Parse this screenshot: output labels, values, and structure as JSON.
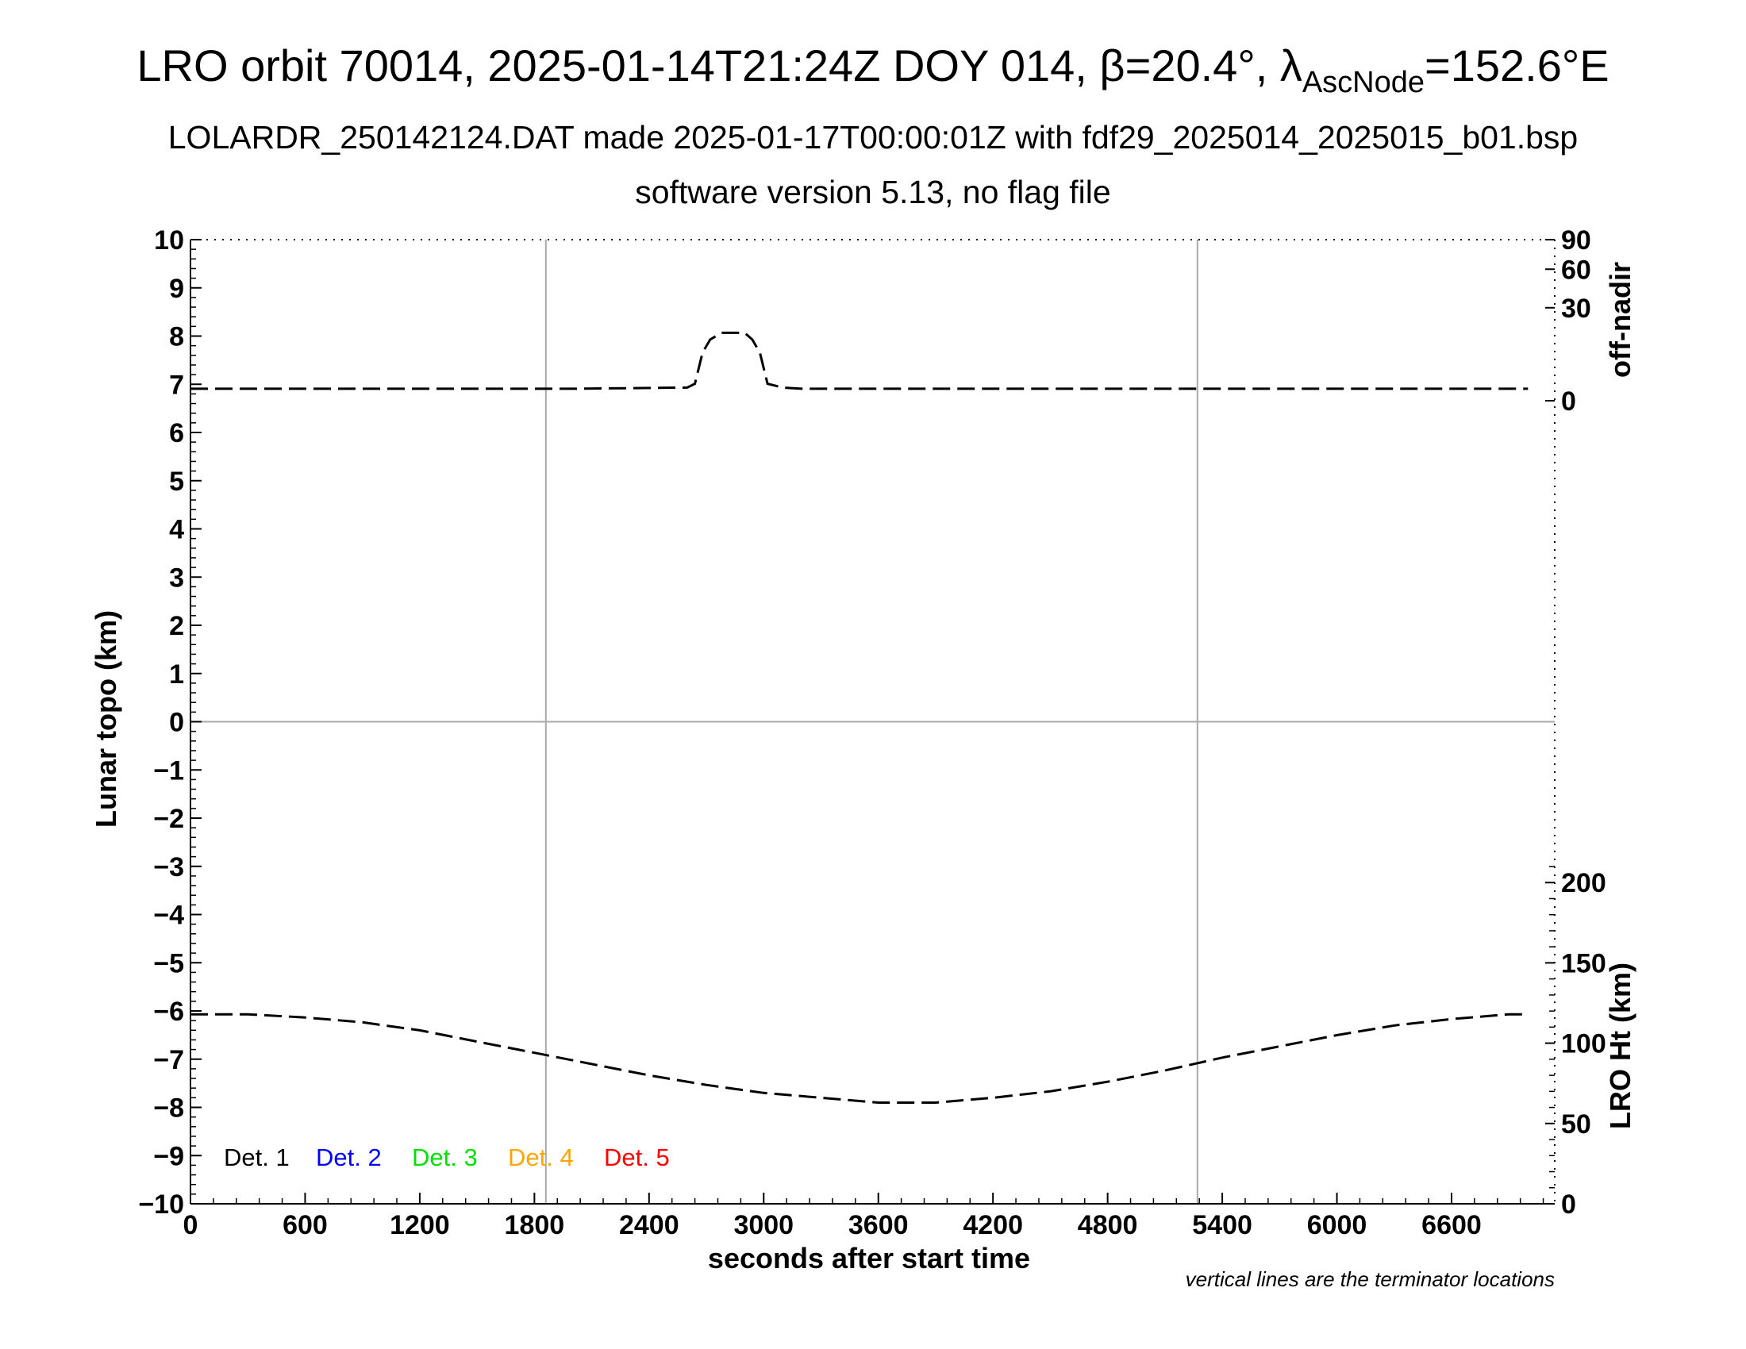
{
  "chart_data": {
    "type": "line",
    "title_parts": {
      "main": "LRO orbit 70014, 2025-01-14T21:24Z DOY 014, β=20.4°, λ",
      "subscript": "AscNode",
      "tail": "=152.6°E"
    },
    "subtitle_line1": "LOLARDR_250142124.DAT made 2025-01-17T00:00:01Z with fdf29_2025014_2025015_b01.bsp",
    "subtitle_line2": "software version 5.13, no flag file",
    "xlabel": "seconds after start time",
    "ylabel": "Lunar topo (km)",
    "y2label_top": "off-nadir",
    "y2label_bottom": "LRO Ht (km)",
    "note": "vertical lines are the terminator locations",
    "xlim": [
      0,
      7140
    ],
    "ylim": [
      -10,
      10
    ],
    "x_ticks": [
      "0",
      "600",
      "1200",
      "1800",
      "2400",
      "3000",
      "3600",
      "4200",
      "4800",
      "5400",
      "6000",
      "6600"
    ],
    "y_ticks": [
      "−10",
      "−9",
      "−8",
      "−7",
      "−6",
      "−5",
      "−4",
      "−3",
      "−2",
      "−1",
      "0",
      "1",
      "2",
      "3",
      "4",
      "5",
      "6",
      "7",
      "8",
      "9",
      "10"
    ],
    "offnadir_ticks": [
      "90",
      "60",
      "30",
      "0"
    ],
    "height_ticks": [
      "200",
      "150",
      "100",
      "50",
      "0"
    ],
    "terminator_x": [
      1860,
      5270
    ],
    "legend": [
      {
        "label": "Det. 1",
        "color": "#000000"
      },
      {
        "label": "Det. 2",
        "color": "#0000ff"
      },
      {
        "label": "Det. 3",
        "color": "#00e000"
      },
      {
        "label": "Det. 4",
        "color": "#ffa500"
      },
      {
        "label": "Det. 5",
        "color": "#ff0000"
      }
    ],
    "series": [
      {
        "axis": "off-nadir (deg)",
        "color": "#000000",
        "style": "dashed",
        "x": [
          0,
          1000,
          2000,
          2600,
          2640,
          2680,
          2720,
          2780,
          2900,
          2940,
          2980,
          3020,
          3100,
          3200,
          4500,
          6000,
          7000
        ],
        "y": [
          0.5,
          0.5,
          0.5,
          0.6,
          1,
          8,
          13,
          16,
          16,
          13,
          8,
          1,
          0.6,
          0.5,
          0.5,
          0.5,
          0.5
        ]
      },
      {
        "axis": "LRO Ht (km)",
        "color": "#000000",
        "style": "dashed",
        "x": [
          0,
          300,
          600,
          900,
          1200,
          1500,
          1800,
          2100,
          2400,
          2700,
          3000,
          3300,
          3600,
          3900,
          4200,
          4500,
          4800,
          5100,
          5400,
          5700,
          6000,
          6300,
          6600,
          6900,
          7000
        ],
        "y": [
          118,
          118,
          116,
          113,
          108,
          101,
          94,
          87,
          80,
          74,
          69,
          66,
          63,
          63,
          66,
          70,
          76,
          83,
          91,
          98,
          105,
          111,
          115,
          118,
          118
        ]
      }
    ]
  }
}
